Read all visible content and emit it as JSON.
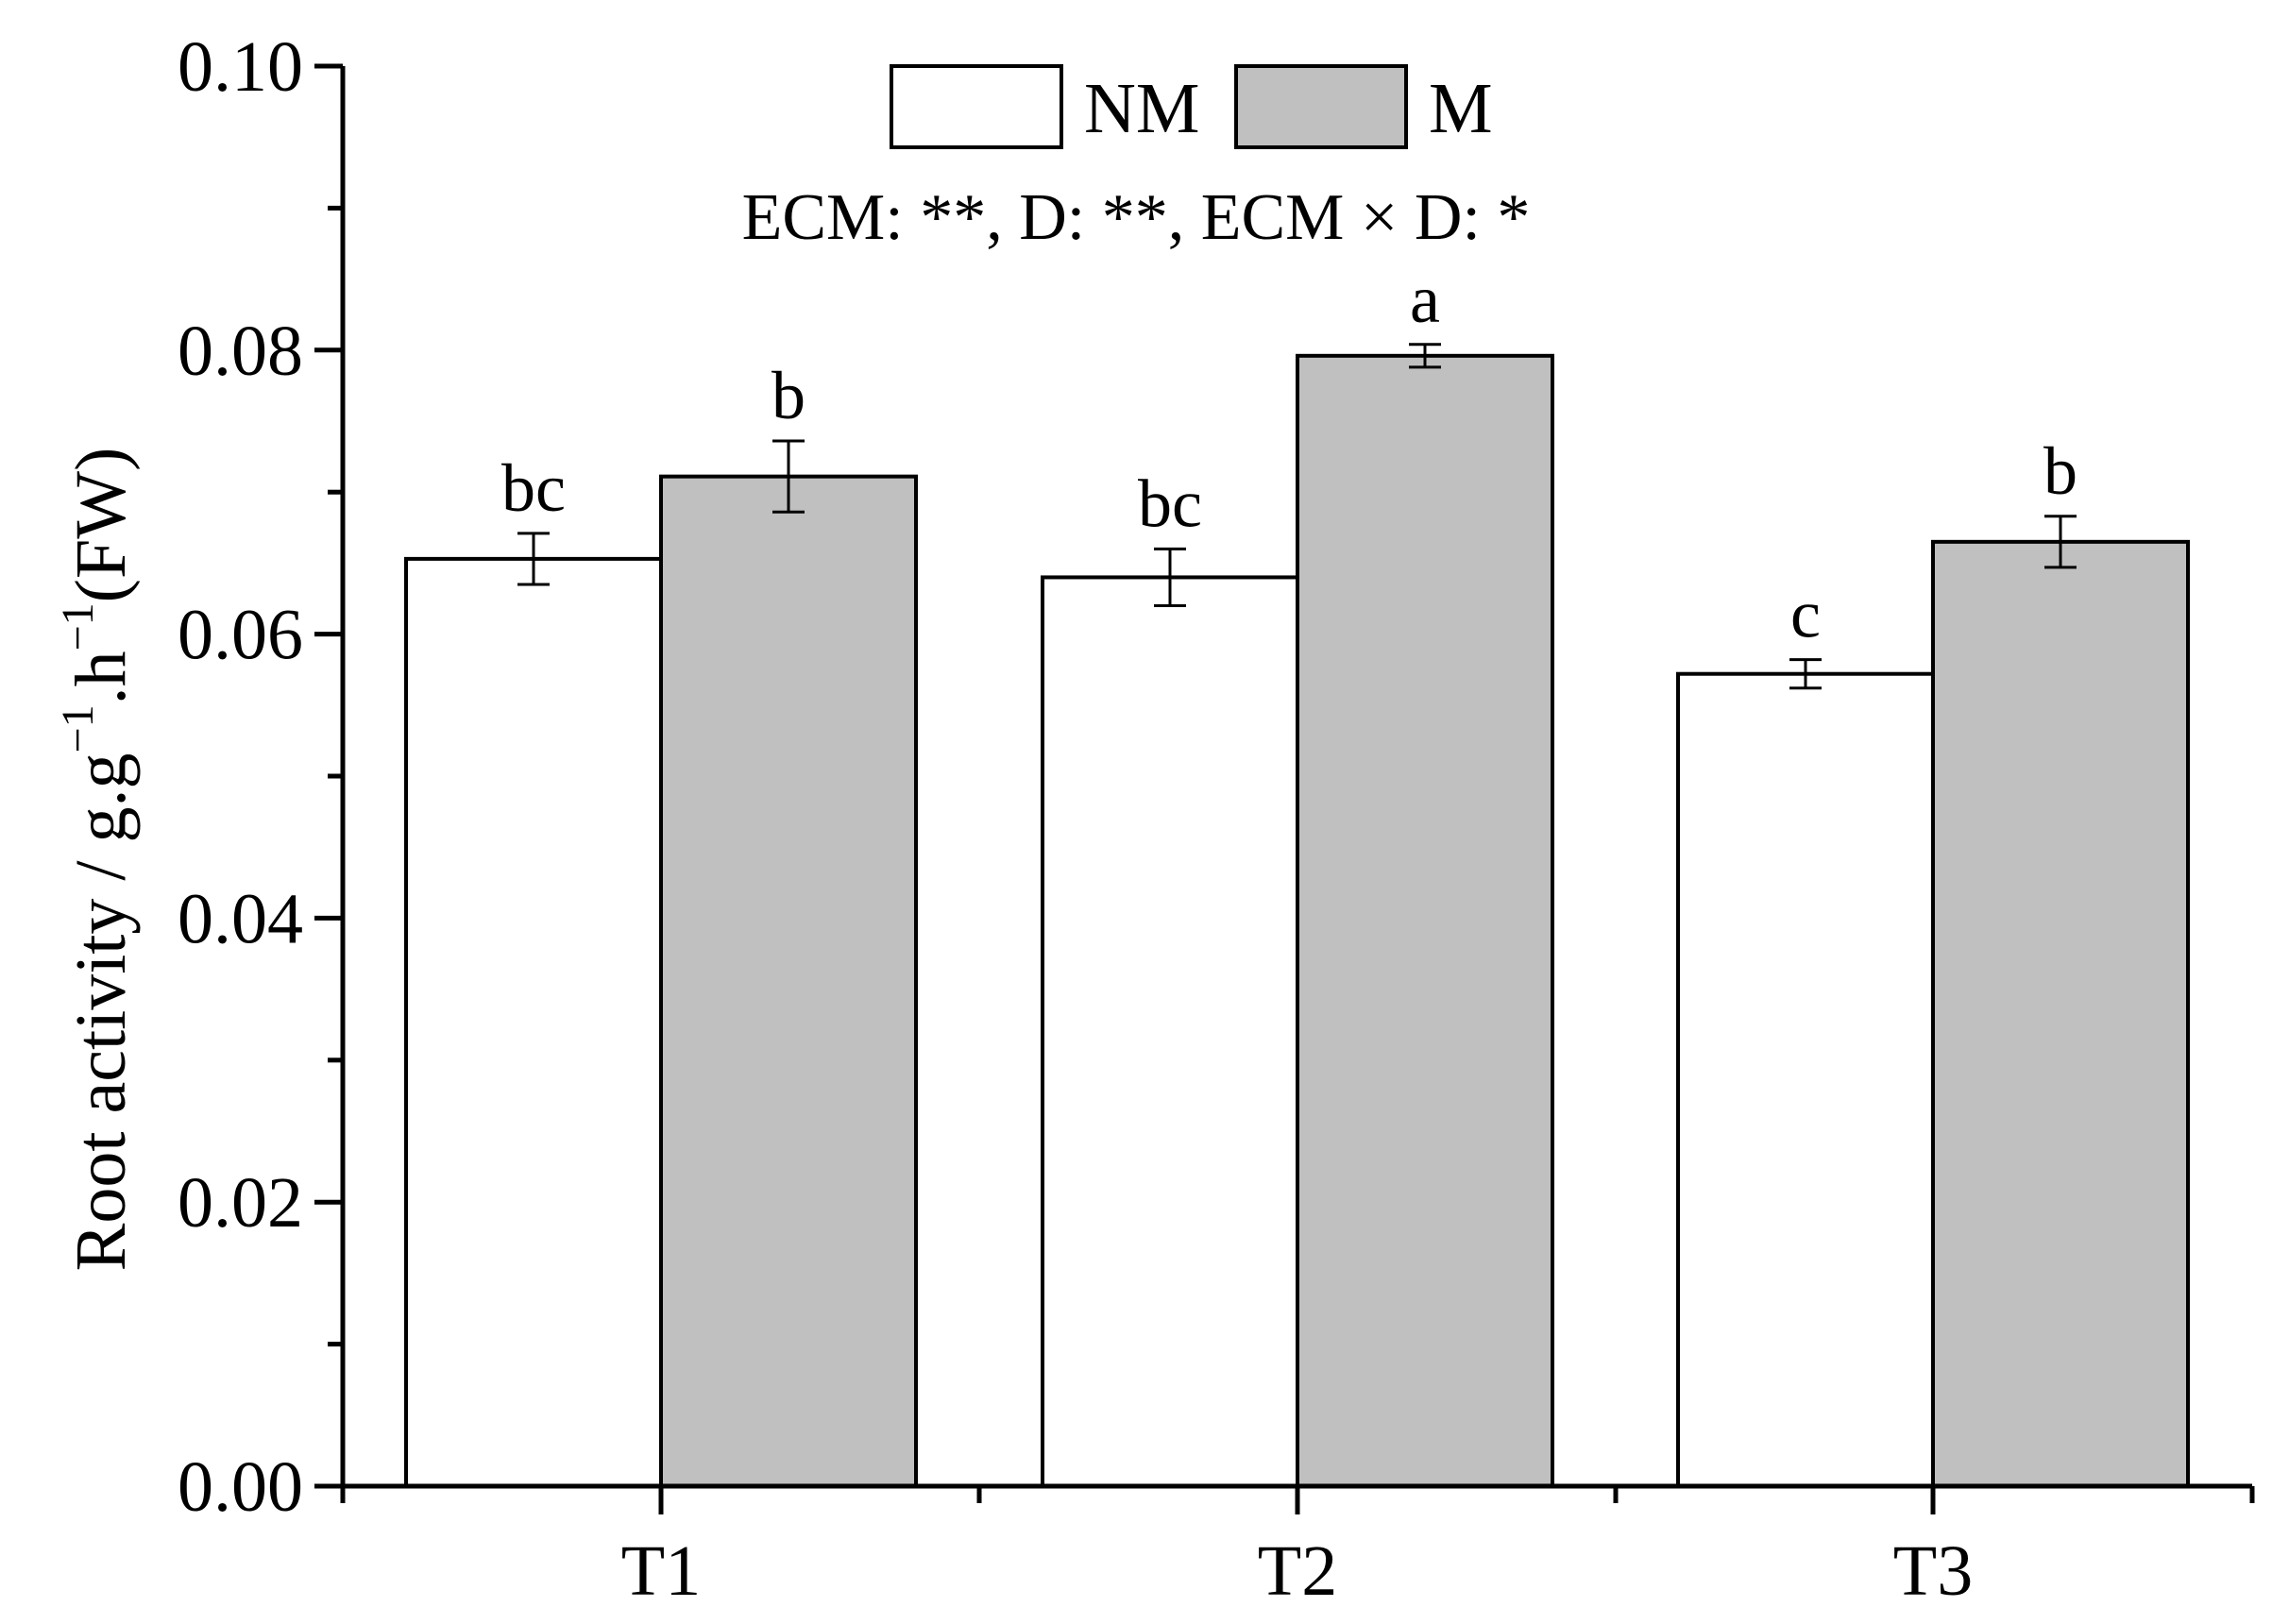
{
  "chart_data": {
    "type": "bar",
    "categories": [
      "T1",
      "T2",
      "T3"
    ],
    "series": [
      {
        "name": "NM",
        "color": "#ffffff",
        "values": [
          0.0653,
          0.064,
          0.0572
        ],
        "errors": [
          0.0018,
          0.002,
          0.001
        ],
        "labels": [
          "bc",
          "bc",
          "c"
        ]
      },
      {
        "name": "M",
        "color": "#c0c0c0",
        "values": [
          0.0711,
          0.0796,
          0.0665
        ],
        "errors": [
          0.0025,
          0.0008,
          0.0018
        ],
        "labels": [
          "b",
          "a",
          "b"
        ]
      }
    ],
    "ylabel_main": "Root activity / g.g",
    "ylabel_sup1": "−1",
    "ylabel_mid": ".h",
    "ylabel_sup2": "−1",
    "ylabel_end": "(FW)",
    "ylim": [
      0,
      0.1
    ],
    "yticks": [
      "0.00",
      "0.02",
      "0.04",
      "0.06",
      "0.08",
      "0.10"
    ],
    "ytick_values": [
      0,
      0.02,
      0.04,
      0.06,
      0.08,
      0.1
    ],
    "annotation": "ECM: **, D: **, ECM × D: *",
    "legend_position": "top-center",
    "grid": false
  }
}
